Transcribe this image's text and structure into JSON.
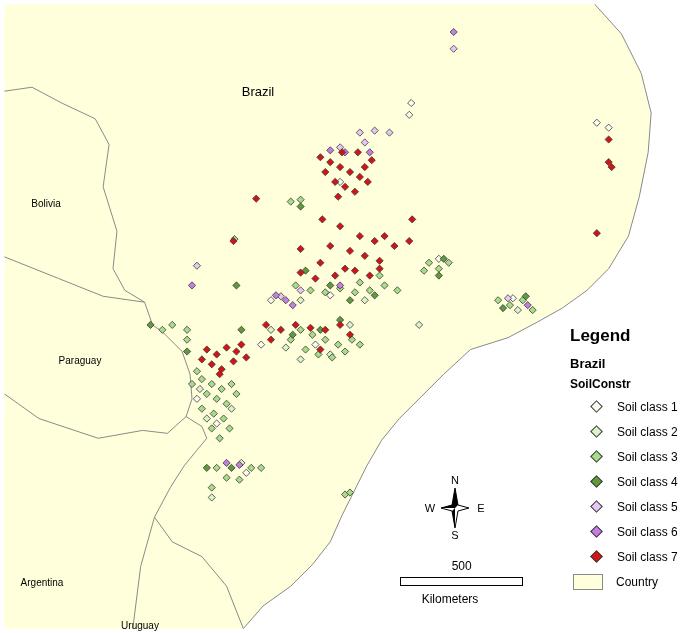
{
  "chart_data": {
    "type": "scatter",
    "country_labels": [
      "Brazil",
      "Bolivia",
      "Paraguay",
      "Argentina",
      "Uruguay"
    ],
    "legend_title": "Legend",
    "layer_title": "Brazil",
    "field_title": "SoilConstr",
    "xlim": [
      0,
      2792
    ],
    "ylim": [
      0,
      2532
    ],
    "tick_labels": false,
    "grid": false,
    "legend": "bottom right",
    "base_layer": {
      "name": "Country",
      "color": "#ffffdc"
    },
    "north_arrow": {
      "north": "N",
      "south": "S",
      "west": "W",
      "east": "E"
    },
    "scale_bar": {
      "length": 500,
      "unit": "Kilometers"
    },
    "series": [
      {
        "name": "Soil class 1",
        "color": "#fbfbf0",
        "marker": "diamond",
        "values": [
          [
            780,
            932
          ],
          [
            860,
            832
          ],
          [
            1040,
            1152
          ],
          [
            1260,
            1152
          ],
          [
            1320,
            1352
          ],
          [
            2400,
            2052
          ],
          [
            2448,
            2032
          ],
          [
            980,
            632
          ],
          [
            1080,
            1332
          ],
          [
            1760,
            1500
          ],
          [
            2060,
            1340
          ],
          [
            1360,
            1812
          ],
          [
            1648,
            2132
          ],
          [
            1640,
            2084
          ]
        ]
      },
      {
        "name": "Soil class 2",
        "color": "#dcf2c8",
        "marker": "diamond",
        "values": [
          [
            792,
            972
          ],
          [
            920,
            892
          ],
          [
            820,
            852
          ],
          [
            1080,
            1212
          ],
          [
            1140,
            1140
          ],
          [
            1200,
            1092
          ],
          [
            1400,
            1232
          ],
          [
            1460,
            1332
          ],
          [
            1200,
            1332
          ],
          [
            2080,
            1292
          ],
          [
            840,
            532
          ],
          [
            960,
            672
          ],
          [
            1680,
            1232
          ],
          [
            1320,
            1112
          ]
        ]
      },
      {
        "name": "Soil class 3",
        "color": "#a8dc88",
        "marker": "diamond",
        "values": [
          [
            800,
            1012
          ],
          [
            840,
            992
          ],
          [
            880,
            972
          ],
          [
            920,
            992
          ],
          [
            820,
            952
          ],
          [
            860,
            932
          ],
          [
            900,
            912
          ],
          [
            940,
            952
          ],
          [
            800,
            892
          ],
          [
            848,
            872
          ],
          [
            888,
            852
          ],
          [
            840,
            812
          ],
          [
            912,
            812
          ],
          [
            780,
            1044
          ],
          [
            760,
            992
          ],
          [
            872,
            772
          ],
          [
            1200,
            1212
          ],
          [
            1248,
            1192
          ],
          [
            1300,
            1172
          ],
          [
            1352,
            1152
          ],
          [
            1408,
            1172
          ],
          [
            1220,
            1132
          ],
          [
            1272,
            1112
          ],
          [
            1328,
            1100
          ],
          [
            1380,
            1124
          ],
          [
            1440,
            1152
          ],
          [
            1160,
            1172
          ],
          [
            1180,
            1392
          ],
          [
            1240,
            1372
          ],
          [
            1300,
            1364
          ],
          [
            1360,
            1380
          ],
          [
            1420,
            1364
          ],
          [
            1480,
            1372
          ],
          [
            1540,
            1392
          ],
          [
            1592,
            1372
          ],
          [
            1520,
            1432
          ],
          [
            1440,
            1404
          ],
          [
            1720,
            1484
          ],
          [
            1760,
            1460
          ],
          [
            1800,
            1484
          ],
          [
            1700,
            1452
          ],
          [
            2000,
            1332
          ],
          [
            2048,
            1312
          ],
          [
            2100,
            1332
          ],
          [
            2140,
            1292
          ],
          [
            860,
            652
          ],
          [
            900,
            612
          ],
          [
            840,
            572
          ],
          [
            952,
            604
          ],
          [
            1000,
            652
          ],
          [
            1040,
            652
          ],
          [
            640,
            1212
          ],
          [
            680,
            1232
          ],
          [
            740,
            1212
          ],
          [
            1380,
            544
          ],
          [
            1400,
            552
          ],
          [
            1160,
            1732
          ],
          [
            1200,
            1740
          ],
          [
            932,
            1580
          ],
          [
            740,
            1172
          ]
        ]
      },
      {
        "name": "Soil class 4",
        "color": "#5f9a3c",
        "marker": "diamond",
        "values": [
          [
            1220,
            1452
          ],
          [
            1320,
            1392
          ],
          [
            1400,
            1332
          ],
          [
            1500,
            1352
          ],
          [
            1168,
            1192
          ],
          [
            1280,
            1212
          ],
          [
            1360,
            1252
          ],
          [
            960,
            1212
          ],
          [
            1760,
            1432
          ],
          [
            1780,
            1500
          ],
          [
            2020,
            1300
          ],
          [
            2112,
            1348
          ],
          [
            920,
            652
          ],
          [
            820,
            652
          ],
          [
            940,
            1392
          ],
          [
            592,
            1232
          ],
          [
            740,
            1124
          ],
          [
            1200,
            1712
          ]
        ]
      },
      {
        "name": "Soil class 5",
        "color": "#e6c8f2",
        "marker": "diamond",
        "values": [
          [
            1440,
            2012
          ],
          [
            1500,
            2020
          ],
          [
            1560,
            2012
          ],
          [
            1460,
            1972
          ],
          [
            1820,
            2352
          ],
          [
            780,
            1472
          ],
          [
            1360,
            1952
          ],
          [
            1120,
            1348
          ],
          [
            1200,
            1372
          ],
          [
            2040,
            1340
          ]
        ]
      },
      {
        "name": "Soil class 6",
        "color": "#c27ee0",
        "marker": "diamond",
        "values": [
          [
            1820,
            2420
          ],
          [
            1380,
            1932
          ],
          [
            1480,
            1932
          ],
          [
            1320,
            1940
          ],
          [
            1140,
            1332
          ],
          [
            1100,
            1352
          ],
          [
            1168,
            1312
          ],
          [
            900,
            672
          ],
          [
            952,
            664
          ],
          [
            760,
            1392
          ],
          [
            1360,
            1392
          ],
          [
            2120,
            1312
          ]
        ]
      },
      {
        "name": "Soil class 7",
        "color": "#d41414",
        "marker": "diamond",
        "values": [
          [
            1280,
            1912
          ],
          [
            1320,
            1892
          ],
          [
            1360,
            1872
          ],
          [
            1400,
            1852
          ],
          [
            1440,
            1832
          ],
          [
            1340,
            1812
          ],
          [
            1380,
            1792
          ],
          [
            1420,
            1772
          ],
          [
            1460,
            1872
          ],
          [
            1488,
            1900
          ],
          [
            1300,
            1852
          ],
          [
            1368,
            1932
          ],
          [
            1432,
            1932
          ],
          [
            1472,
            1812
          ],
          [
            1352,
            1752
          ],
          [
            1020,
            1744
          ],
          [
            1288,
            1660
          ],
          [
            1360,
            1632
          ],
          [
            1440,
            1592
          ],
          [
            1500,
            1572
          ],
          [
            1540,
            1592
          ],
          [
            1580,
            1552
          ],
          [
            1640,
            1572
          ],
          [
            1652,
            1660
          ],
          [
            1400,
            1532
          ],
          [
            1320,
            1552
          ],
          [
            1460,
            1512
          ],
          [
            1520,
            1492
          ],
          [
            1200,
            1540
          ],
          [
            1280,
            1484
          ],
          [
            1380,
            1460
          ],
          [
            1200,
            1444
          ],
          [
            1260,
            1420
          ],
          [
            1340,
            1432
          ],
          [
            1420,
            1452
          ],
          [
            1480,
            1432
          ],
          [
            1520,
            1460
          ],
          [
            1060,
            1232
          ],
          [
            1120,
            1212
          ],
          [
            1180,
            1232
          ],
          [
            1240,
            1220
          ],
          [
            1300,
            1212
          ],
          [
            1360,
            1232
          ],
          [
            1400,
            1192
          ],
          [
            1080,
            1172
          ],
          [
            820,
            1132
          ],
          [
            860,
            1112
          ],
          [
            900,
            1140
          ],
          [
            940,
            1124
          ],
          [
            980,
            1100
          ],
          [
            840,
            1072
          ],
          [
            880,
            1052
          ],
          [
            928,
            1084
          ],
          [
            960,
            1152
          ],
          [
            872,
            1032
          ],
          [
            800,
            1092
          ],
          [
            2448,
            1984
          ],
          [
            2460,
            1872
          ],
          [
            2400,
            1604
          ],
          [
            2448,
            1892
          ],
          [
            928,
            1572
          ],
          [
            1280,
            1132
          ]
        ]
      }
    ]
  }
}
